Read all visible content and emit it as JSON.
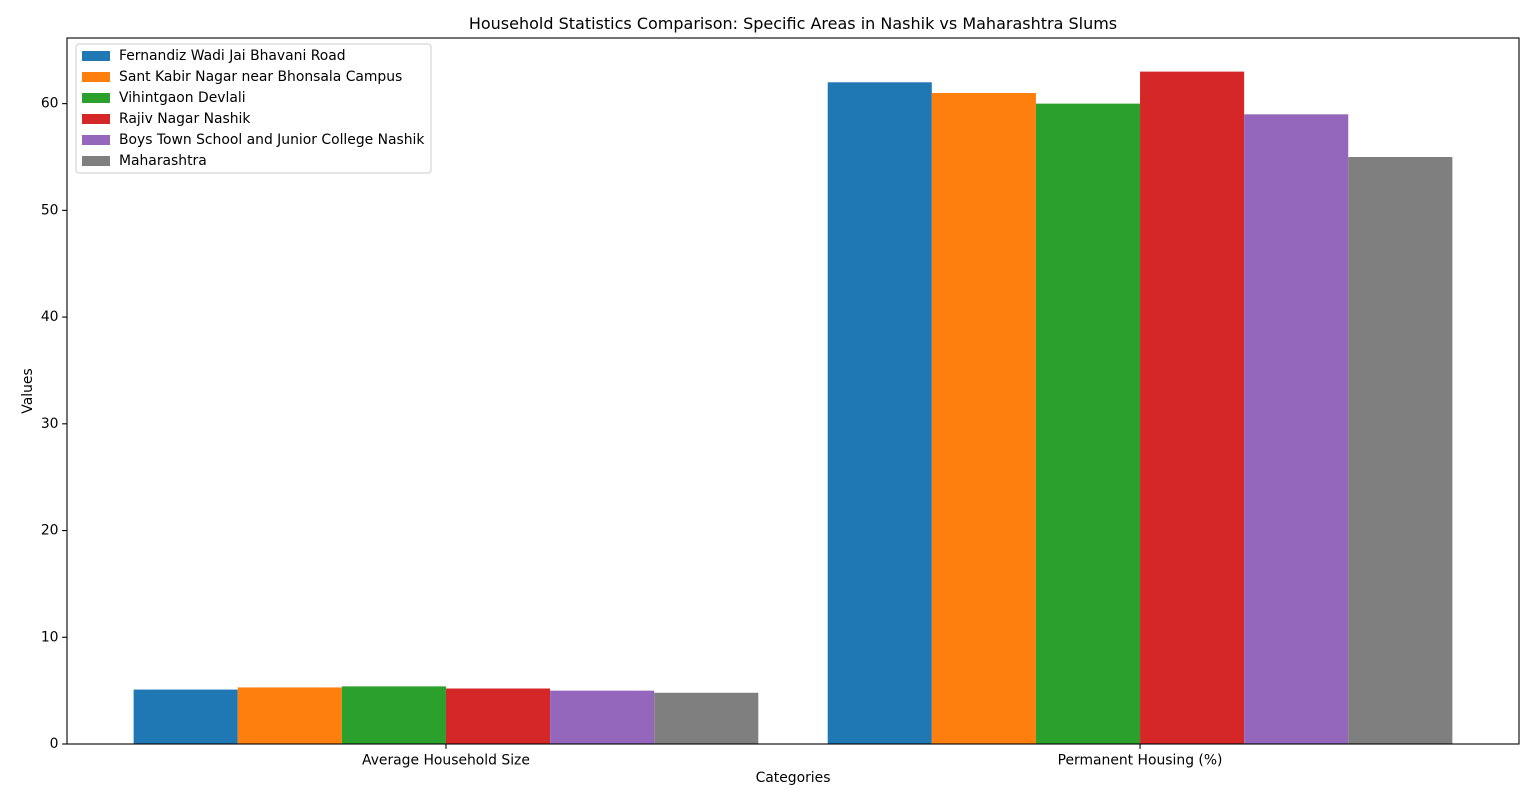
{
  "chart_data": {
    "type": "bar",
    "title": "Household Statistics Comparison: Specific Areas in Nashik vs Maharashtra Slums",
    "xlabel": "Categories",
    "ylabel": "Values",
    "categories": [
      "Average Household Size",
      "Permanent Housing (%)"
    ],
    "series": [
      {
        "name": "Fernandiz Wadi Jai Bhavani Road",
        "color": "#1f77b4",
        "values": [
          5.1,
          62
        ]
      },
      {
        "name": "Sant Kabir Nagar near Bhonsala Campus",
        "color": "#ff7f0e",
        "values": [
          5.3,
          61
        ]
      },
      {
        "name": "Vihintgaon Devlali",
        "color": "#2ca02c",
        "values": [
          5.4,
          60
        ]
      },
      {
        "name": "Rajiv Nagar Nashik",
        "color": "#d62728",
        "values": [
          5.2,
          63
        ]
      },
      {
        "name": "Boys Town School and Junior College Nashik",
        "color": "#9467bd",
        "values": [
          5.0,
          59
        ]
      },
      {
        "name": "Maharashtra",
        "color": "#7f7f7f",
        "values": [
          4.8,
          55
        ]
      }
    ],
    "ylim": [
      0,
      66.15
    ],
    "yticks": [
      0,
      10,
      20,
      30,
      40,
      50,
      60
    ],
    "grid": false,
    "legend": "top-left"
  }
}
